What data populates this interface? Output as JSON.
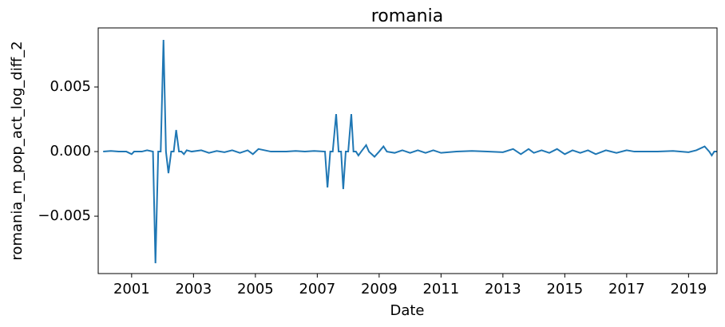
{
  "chart_data": {
    "type": "line",
    "title": "romania",
    "x_label": "Date",
    "y_label": "romania_m_pop_act_log_diff_2",
    "color": "#1f77b4",
    "x": [
      2000.08,
      2000.33,
      2000.58,
      2000.83,
      2001.0,
      2001.08,
      2001.33,
      2001.5,
      2001.69,
      2001.77,
      2001.86,
      2001.94,
      2002.03,
      2002.11,
      2002.19,
      2002.28,
      2002.36,
      2002.44,
      2002.53,
      2002.61,
      2002.69,
      2002.78,
      2002.94,
      2003.25,
      2003.5,
      2003.75,
      2004.0,
      2004.25,
      2004.5,
      2004.75,
      2004.92,
      2005.1,
      2005.5,
      2005.75,
      2006.0,
      2006.3,
      2006.6,
      2006.9,
      2007.25,
      2007.33,
      2007.42,
      2007.5,
      2007.61,
      2007.69,
      2007.77,
      2007.84,
      2007.92,
      2008.0,
      2008.1,
      2008.17,
      2008.25,
      2008.33,
      2008.42,
      2008.58,
      2008.67,
      2008.85,
      2009.0,
      2009.14,
      2009.25,
      2009.5,
      2009.75,
      2010.0,
      2010.25,
      2010.5,
      2010.75,
      2011.0,
      2011.5,
      2012.0,
      2012.5,
      2013.0,
      2013.33,
      2013.58,
      2013.83,
      2014.0,
      2014.25,
      2014.5,
      2014.75,
      2015.0,
      2015.25,
      2015.5,
      2015.75,
      2016.0,
      2016.33,
      2016.67,
      2017.0,
      2017.25,
      2017.5,
      2018.0,
      2018.5,
      2019.0,
      2019.25,
      2019.52,
      2019.67,
      2019.75,
      2019.83,
      2019.92
    ],
    "values": [
      0,
      5e-05,
      0,
      0,
      -0.0002,
      0,
      0,
      0.0001,
      0,
      -0.00864,
      0,
      0,
      0.00864,
      0,
      -0.00167,
      0,
      0,
      0.00167,
      0,
      0,
      -0.0002,
      0.0001,
      0,
      0.0001,
      -0.0001,
      5e-05,
      -5e-05,
      0.0001,
      -0.0001,
      0.0001,
      -0.0002,
      0.0002,
      0,
      0,
      0,
      5e-05,
      0,
      5e-05,
      0,
      -0.00278,
      0,
      0,
      0.0029,
      0,
      0,
      -0.0029,
      0,
      0,
      0.0029,
      0,
      0,
      -0.0003,
      0,
      0.0005,
      0,
      -0.0004,
      0,
      0.0004,
      0,
      -0.0001,
      0.0001,
      -0.0001,
      0.0001,
      -0.0001,
      0.0001,
      -0.0001,
      0,
      5e-05,
      0,
      -5e-05,
      0.0002,
      -0.0002,
      0.0002,
      -0.0001,
      0.0001,
      -0.0001,
      0.0002,
      -0.0002,
      0.0001,
      -0.0001,
      0.0001,
      -0.0002,
      0.0001,
      -0.0001,
      0.0001,
      0,
      0,
      0,
      5e-05,
      -5e-05,
      0.0001,
      0.0004,
      0,
      -0.0003,
      0,
      0
    ],
    "xlim": [
      1999.92,
      2019.92
    ],
    "ylim": [
      -0.00944,
      0.00957
    ],
    "xticks": [
      2001,
      2003,
      2005,
      2007,
      2009,
      2011,
      2013,
      2015,
      2017,
      2019
    ],
    "yticks": [
      {
        "value": -0.005,
        "label": "−0.005"
      },
      {
        "value": 0,
        "label": "0.000"
      },
      {
        "value": 0.005,
        "label": "0.005"
      }
    ]
  }
}
